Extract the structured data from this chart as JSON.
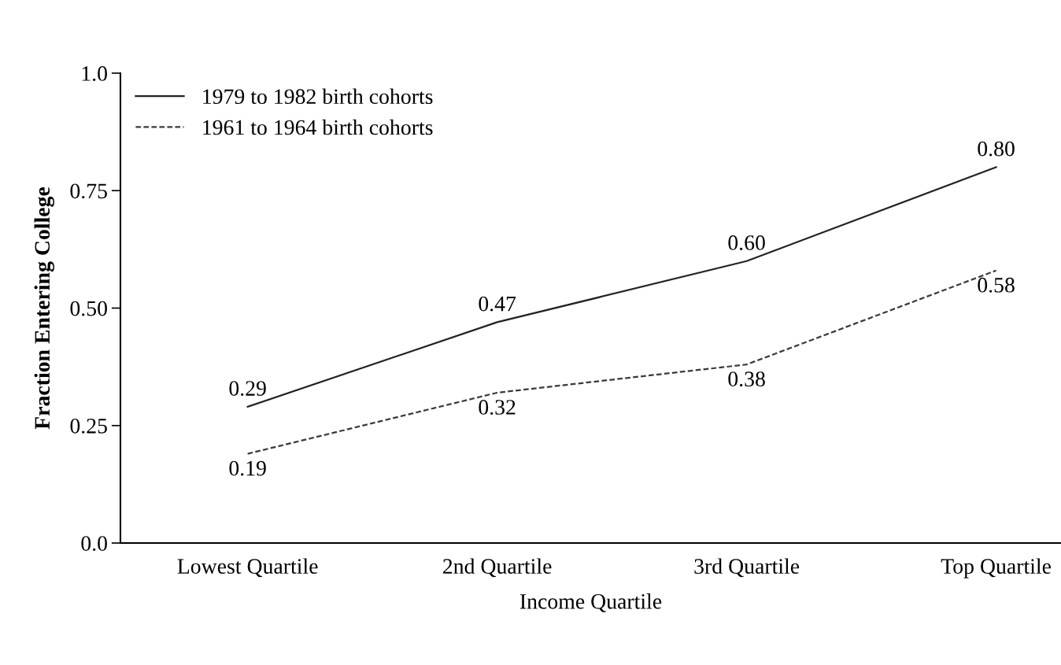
{
  "chart_data": {
    "type": "line",
    "xlabel": "Income Quartile",
    "ylabel": "Fraction Entering College",
    "categories": [
      "Lowest Quartile",
      "2nd Quartile",
      "3rd Quartile",
      "Top Quartile"
    ],
    "series": [
      {
        "name": "1979 to 1982 birth cohorts",
        "color": "#222222",
        "line_style": "solid",
        "values": [
          0.29,
          0.47,
          0.6,
          0.8
        ],
        "value_labels": [
          "0.29",
          "0.47",
          "0.60",
          "0.80"
        ]
      },
      {
        "name": "1961 to 1964 birth cohorts",
        "color": "#3a3a3a",
        "line_style": "dashed",
        "values": [
          0.19,
          0.32,
          0.38,
          0.58
        ],
        "value_labels": [
          "0.19",
          "0.32",
          "0.38",
          "0.58"
        ]
      }
    ],
    "ylim": [
      0,
      1
    ],
    "yticks": [
      {
        "value": 0,
        "label": "0.0"
      },
      {
        "value": 0.25,
        "label": "0.25"
      },
      {
        "value": 0.5,
        "label": "0.50"
      },
      {
        "value": 0.75,
        "label": "0.75"
      },
      {
        "value": 1,
        "label": "1.0"
      }
    ],
    "legend": "top left",
    "grid": false,
    "marker": "none"
  }
}
